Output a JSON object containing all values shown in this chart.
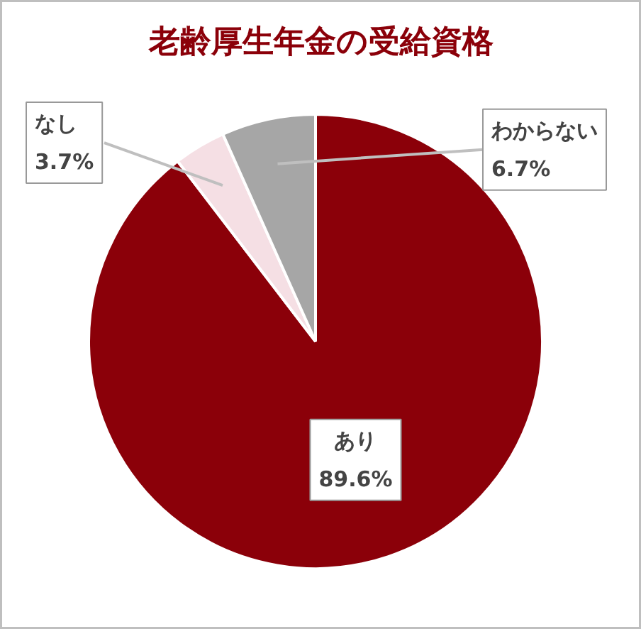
{
  "chart_data": {
    "type": "pie",
    "title": "老齢厚生年金の受給資格",
    "categories": [
      "あり",
      "なし",
      "わからない"
    ],
    "values": [
      89.6,
      3.7,
      6.7
    ],
    "colors": [
      "#8b0009",
      "#f5dfe4",
      "#a6a6a6"
    ],
    "value_labels": [
      "89.6%",
      "3.7%",
      "6.7%"
    ]
  }
}
